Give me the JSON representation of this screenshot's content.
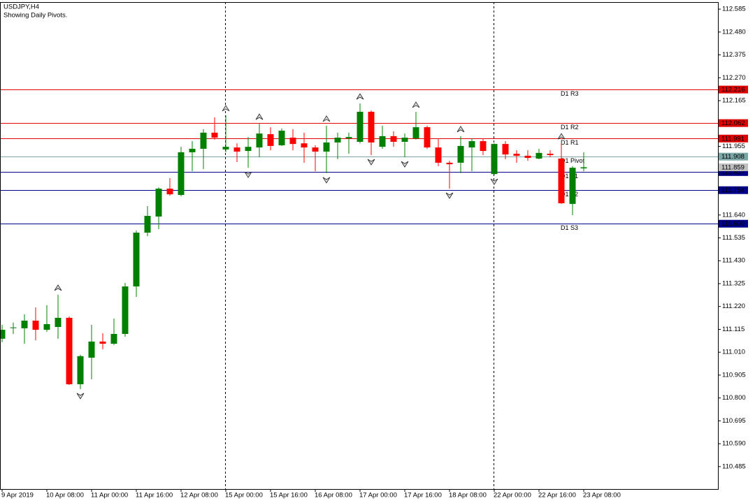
{
  "chart_data": {
    "type": "candlestick",
    "title": "USDJPY,H4",
    "subtitle": "Showing Daily Pivots.",
    "categories": [
      "9 Apr 2019",
      null,
      null,
      null,
      "10 Apr 08:00",
      null,
      null,
      null,
      "11 Apr 00:00",
      null,
      null,
      null,
      "11 Apr 16:00",
      null,
      null,
      null,
      "12 Apr 08:00",
      null,
      null,
      null,
      "15 Apr 00:00",
      null,
      null,
      null,
      "15 Apr 16:00",
      null,
      null,
      null,
      "16 Apr 08:00",
      null,
      null,
      null,
      "17 Apr 00:00",
      null,
      null,
      null,
      "17 Apr 16:00",
      null,
      null,
      null,
      "18 Apr 08:00",
      null,
      null,
      null,
      "22 Apr 00:00",
      null,
      null,
      null,
      "22 Apr 16:00",
      null,
      null,
      null,
      "23 Apr 08:00"
    ],
    "open": [
      111.072,
      111.123,
      111.12,
      111.155,
      111.113,
      111.126,
      111.168,
      110.863,
      110.985,
      111.059,
      111.049,
      111.094,
      111.312,
      111.559,
      111.633,
      111.761,
      111.732,
      111.928,
      111.944,
      112.018,
      111.941,
      111.95,
      111.934,
      111.95,
      112.011,
      111.96,
      111.995,
      111.969,
      111.95,
      111.931,
      111.973,
      111.992,
      111.976,
      112.114,
      111.953,
      112.002,
      111.976,
      111.992,
      112.043,
      111.95,
      111.88,
      111.88,
      111.95,
      111.979,
      111.828,
      111.966,
      111.921,
      111.912,
      111.899,
      111.921,
      111.899,
      111.691,
      111.854
    ],
    "high": [
      111.136,
      111.146,
      111.184,
      111.216,
      111.226,
      111.274,
      111.174,
      110.998,
      111.136,
      111.097,
      111.165,
      111.328,
      111.569,
      111.681,
      111.767,
      111.809,
      111.953,
      111.979,
      112.034,
      112.088,
      112.098,
      111.969,
      111.998,
      112.059,
      112.043,
      112.037,
      112.034,
      112.018,
      111.96,
      112.05,
      112.018,
      112.018,
      112.152,
      112.12,
      112.05,
      112.024,
      112.014,
      112.114,
      112.05,
      111.992,
      111.889,
      112.002,
      111.992,
      111.992,
      111.969,
      111.979,
      111.937,
      111.937,
      111.944,
      111.937,
      111.969,
      111.864,
      111.928
    ],
    "low": [
      111.056,
      111.094,
      111.049,
      111.065,
      111.104,
      111.072,
      110.86,
      110.841,
      110.886,
      111.024,
      111.043,
      111.081,
      111.264,
      111.543,
      111.575,
      111.729,
      111.726,
      111.841,
      111.851,
      111.986,
      111.928,
      111.883,
      111.857,
      111.905,
      111.937,
      111.957,
      111.937,
      111.88,
      111.841,
      111.832,
      111.896,
      111.921,
      111.969,
      111.915,
      111.944,
      111.953,
      111.905,
      111.986,
      111.944,
      111.864,
      111.761,
      111.832,
      111.841,
      111.915,
      111.825,
      111.896,
      111.88,
      111.889,
      111.896,
      111.905,
      111.691,
      111.639,
      111.841
    ],
    "close": [
      111.113,
      111.124,
      111.155,
      111.113,
      111.139,
      111.168,
      110.863,
      110.992,
      111.059,
      111.049,
      111.094,
      111.312,
      111.559,
      111.636,
      111.761,
      111.735,
      111.928,
      111.944,
      112.018,
      111.995,
      111.953,
      111.931,
      111.953,
      112.014,
      111.957,
      112.027,
      111.966,
      111.95,
      111.931,
      111.973,
      111.995,
      111.998,
      112.114,
      111.973,
      112.002,
      111.976,
      111.995,
      112.043,
      111.95,
      111.88,
      111.873,
      111.957,
      111.979,
      111.934,
      111.966,
      111.918,
      111.912,
      111.902,
      111.925,
      111.915,
      111.694,
      111.857,
      111.859
    ],
    "up_color": "#008000",
    "down_color": "#ff0000",
    "ylim": [
      110.382,
      112.627
    ],
    "yticks": [
      112.585,
      {
        "value": 112.48,
        "label": "112.480"
      },
      112.375,
      {
        "value": 112.27,
        "label": "112.270"
      },
      112.165,
      111.955,
      {
        "value": 111.64,
        "label": "111.640"
      },
      111.535,
      {
        "value": 111.43,
        "label": "111.430"
      },
      111.325,
      {
        "value": 111.22,
        "label": "111.220"
      },
      111.115,
      {
        "value": 111.01,
        "label": "111.010"
      },
      110.905,
      {
        "value": 110.8,
        "label": "110.800"
      },
      110.695,
      {
        "value": 110.59,
        "label": "110.590"
      },
      110.485
    ],
    "pivots": [
      {
        "name": "D1 R3",
        "value": 112.216,
        "color": "#e00000"
      },
      {
        "name": "D1 R2",
        "value": 112.062,
        "color": "#e00000"
      },
      {
        "name": "D1 R1",
        "value": 111.991,
        "color": "#e00000"
      },
      {
        "name": "D1 Pivot",
        "value": 111.908,
        "color": "#7aa6a6"
      },
      {
        "name": "D1 S1",
        "value": 111.837,
        "color": "#00008b"
      },
      {
        "name": "D1 S2",
        "value": 111.754,
        "color": "#00008b"
      },
      {
        "name": "D1 S3",
        "value": 111.6,
        "value_label": "111.600",
        "color": "#00008b"
      }
    ],
    "last_price": 111.859
  }
}
